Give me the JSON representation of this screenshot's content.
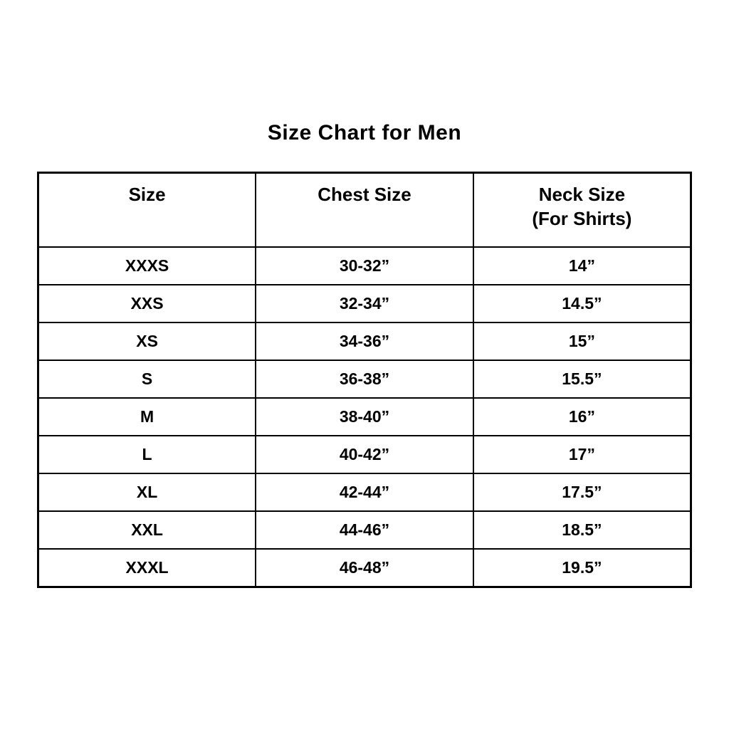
{
  "page": {
    "title": "Size Chart for Men"
  },
  "header_display": {
    "col_size": "Size",
    "col_chest": "Chest Size",
    "col_neck_line1": "Neck Size",
    "col_neck_line2": "(For Shirts)"
  },
  "colors": {
    "background": "#ffffff",
    "text": "#000000",
    "border": "#000000"
  },
  "chart_data": {
    "type": "table",
    "title": "Size Chart for Men",
    "columns": [
      "Size",
      "Chest Size",
      "Neck Size (For Shirts)"
    ],
    "rows": [
      [
        "XXXS",
        "30-32”",
        "14”"
      ],
      [
        "XXS",
        "32-34”",
        "14.5”"
      ],
      [
        "XS",
        "34-36”",
        "15”"
      ],
      [
        "S",
        "36-38”",
        "15.5”"
      ],
      [
        "M",
        "38-40”",
        "16”"
      ],
      [
        "L",
        "40-42”",
        "17”"
      ],
      [
        "XL",
        "42-44”",
        "17.5”"
      ],
      [
        "XXL",
        "44-46”",
        "18.5”"
      ],
      [
        "XXXL",
        "46-48”",
        "19.5”"
      ]
    ]
  }
}
